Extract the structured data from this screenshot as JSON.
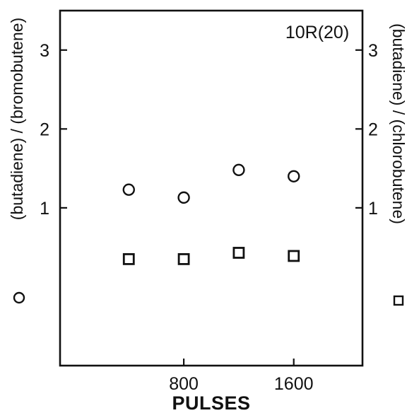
{
  "chart_data": {
    "type": "scatter",
    "title": "",
    "annotation": "10R(20)",
    "xlabel": "PULSES",
    "ylabel_left": "(butadiene) / (bromobutene)",
    "ylabel_right": "(butadiene) / (chlorobutene)",
    "xlim": [
      -100,
      2100
    ],
    "ylim": [
      -1.0,
      3.5
    ],
    "x_ticks": [
      800,
      1600
    ],
    "x_tick_labels": [
      "800",
      "1600"
    ],
    "y_ticks": [
      1,
      2,
      3
    ],
    "y_tick_labels": [
      "1",
      "2",
      "3"
    ],
    "series": [
      {
        "marker": "circle",
        "x": [
          400,
          800,
          1200,
          1600
        ],
        "y": [
          1.23,
          1.13,
          1.48,
          1.4
        ]
      },
      {
        "marker": "square",
        "x": [
          400,
          800,
          1200,
          1600
        ],
        "y": [
          0.35,
          0.35,
          0.43,
          0.39
        ]
      }
    ],
    "grid": false
  }
}
